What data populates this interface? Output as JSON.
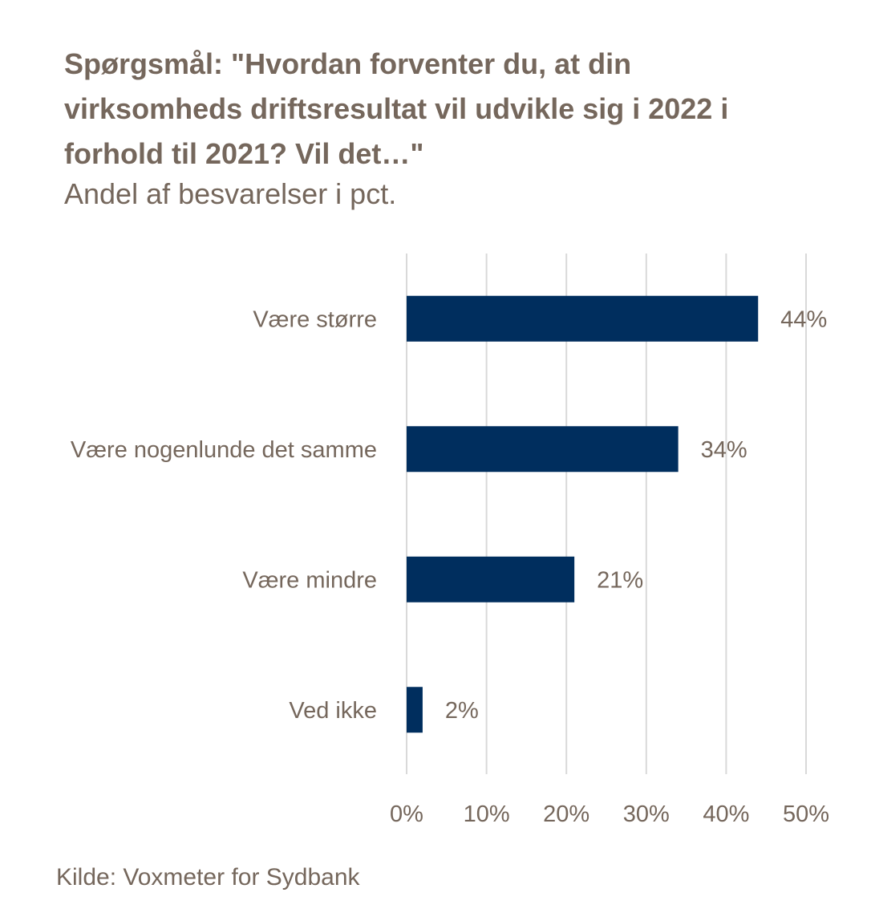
{
  "title": "Spørgsmål: \"Hvordan forventer du, at din virksomheds driftsresultat vil udvikle sig i 2022 i forhold til 2021? Vil det…\"",
  "subtitle": "Andel af besvarelser i pct.",
  "source": "Kilde: Voxmeter for Sydbank",
  "colors": {
    "bar": "#002e5e",
    "text": "#75675c",
    "grid": "#d9d9d9"
  },
  "chart_data": {
    "type": "bar",
    "orientation": "horizontal",
    "categories": [
      "Være større",
      "Være nogenlunde det samme",
      "Være mindre",
      "Ved ikke"
    ],
    "values": [
      44,
      34,
      21,
      2
    ],
    "value_labels": [
      "44%",
      "34%",
      "21%",
      "2%"
    ],
    "xlim": [
      0,
      50
    ],
    "x_ticks": [
      0,
      10,
      20,
      30,
      40,
      50
    ],
    "x_tick_labels": [
      "0%",
      "10%",
      "20%",
      "30%",
      "40%",
      "50%"
    ],
    "grid": "vertical",
    "legend": "none"
  }
}
